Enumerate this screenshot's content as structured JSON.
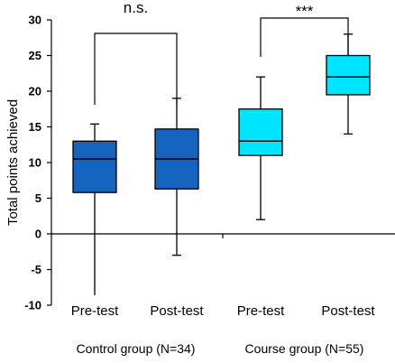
{
  "chart_data": {
    "type": "box",
    "ylabel": "Total points achieved",
    "ylim": [
      -10,
      30
    ],
    "yticks": [
      -10,
      -5,
      0,
      5,
      10,
      15,
      20,
      25,
      30
    ],
    "grid": false,
    "categories": [
      "Pre-test",
      "Post-test",
      "Pre-test",
      "Post-test"
    ],
    "groups": [
      {
        "label": "Control group (N=34)",
        "categories": [
          0,
          1
        ]
      },
      {
        "label": "Course group (N=55)",
        "categories": [
          2,
          3
        ]
      }
    ],
    "boxes": [
      {
        "category": "Pre-test",
        "group": "Control group (N=34)",
        "min": -8.6,
        "q1": 5.8,
        "median": 10.5,
        "q3": 13.0,
        "max": 15.4,
        "color": "#1565C0"
      },
      {
        "category": "Post-test",
        "group": "Control group (N=34)",
        "min": -3.0,
        "q1": 6.3,
        "median": 10.5,
        "q3": 14.7,
        "max": 19.0,
        "color": "#1565C0"
      },
      {
        "category": "Pre-test",
        "group": "Course group (N=55)",
        "min": 2.0,
        "q1": 11.0,
        "median": 13.0,
        "q3": 17.5,
        "max": 22.0,
        "color": "#00E5FF"
      },
      {
        "category": "Post-test",
        "group": "Course group (N=55)",
        "min": 14.0,
        "q1": 19.5,
        "median": 22.0,
        "q3": 25.0,
        "max": 28.0,
        "color": "#00E5FF"
      }
    ],
    "significance": [
      {
        "from": 0,
        "to": 1,
        "label": "n.s."
      },
      {
        "from": 2,
        "to": 3,
        "label": "***"
      }
    ]
  }
}
